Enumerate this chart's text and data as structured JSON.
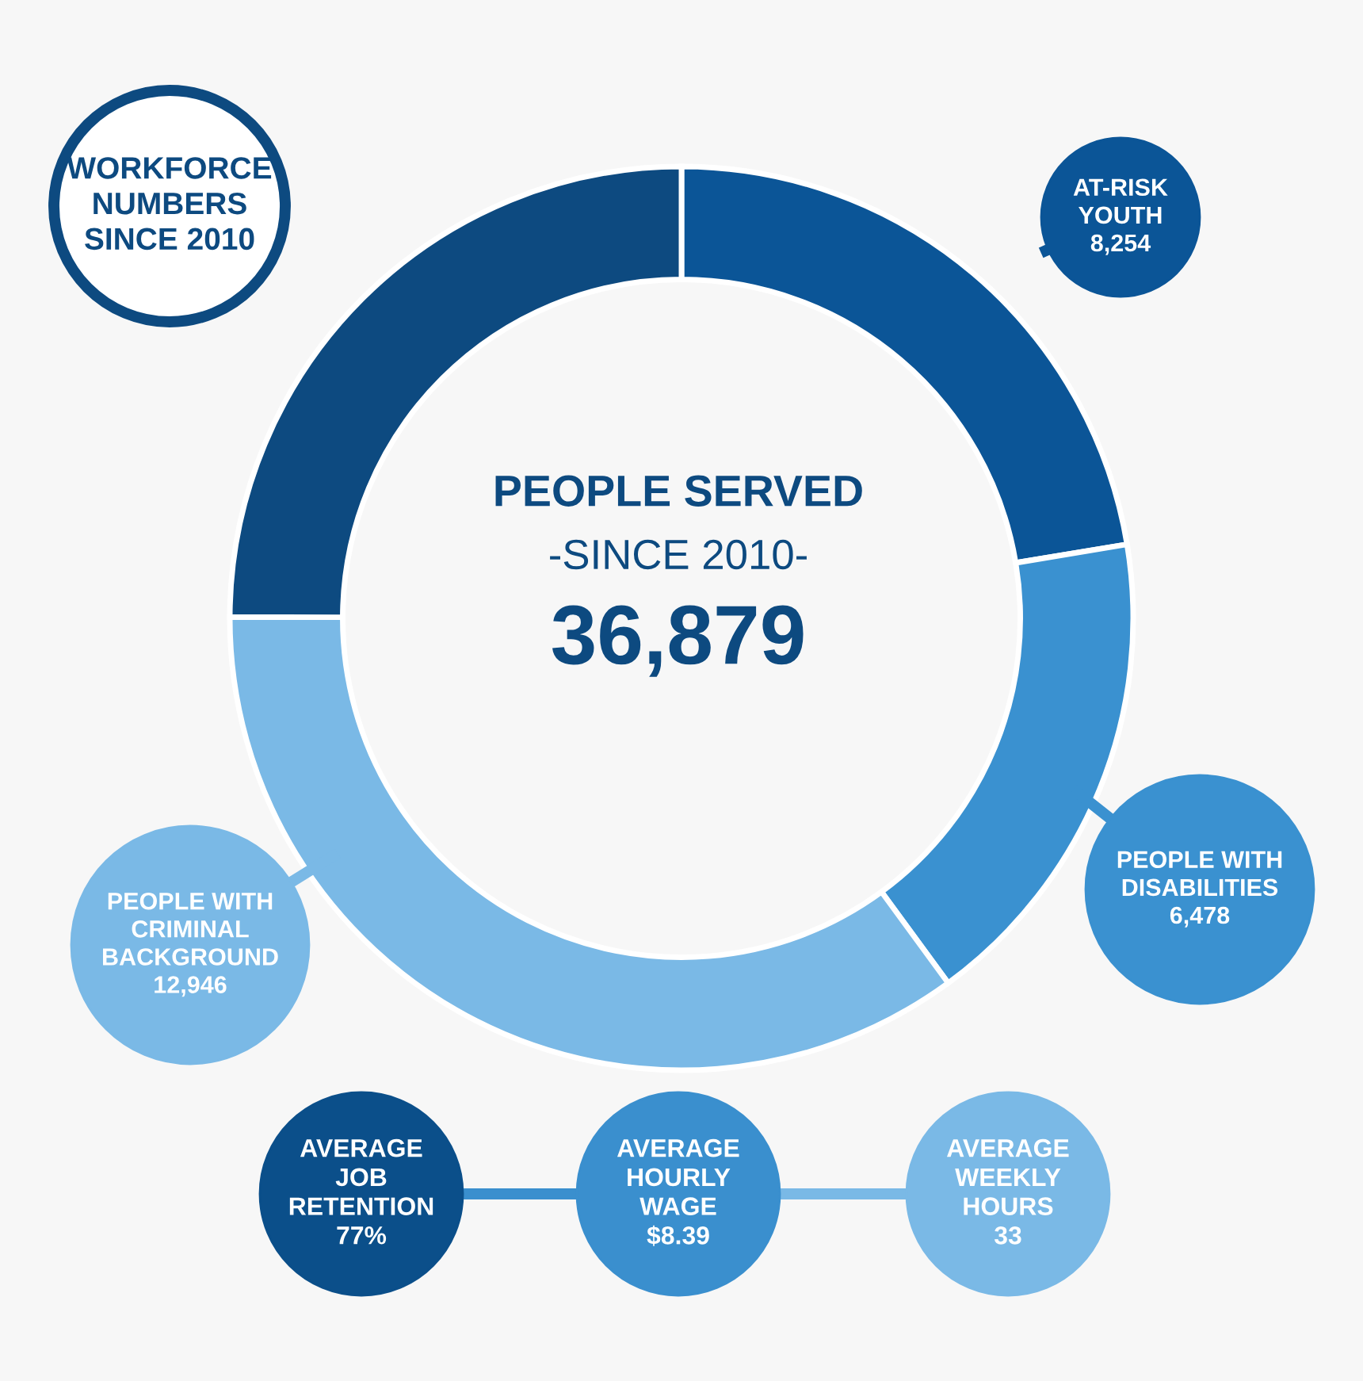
{
  "chart_data": {
    "type": "donut",
    "title": "WORKFORCE\nNUMBERS\nSINCE 2010",
    "categories": [
      "AT-RISK\nYOUTH",
      "PEOPLE WITH\nDISABILITIES",
      "PEOPLE WITH\nCRIMINAL\nBACKGROUND",
      null
    ],
    "values": [
      8254,
      6478,
      12946,
      9201
    ],
    "value_labels": [
      "8,254",
      "6,478",
      "12,946",
      null
    ],
    "colors": [
      "#0b5597",
      "#3a91d0",
      "#7ab9e6",
      "#0d4a80"
    ],
    "annotations": [
      "PEOPLE SERVED",
      "-SINCE 2010-",
      "36,879",
      "AVERAGE\nJOB\nRETENTION\n77%",
      "AVERAGE\nHOURLY\nWAGE\n$8.39",
      "AVERAGE\nWEEKLY\nHOURS\n33"
    ],
    "legend": false
  }
}
